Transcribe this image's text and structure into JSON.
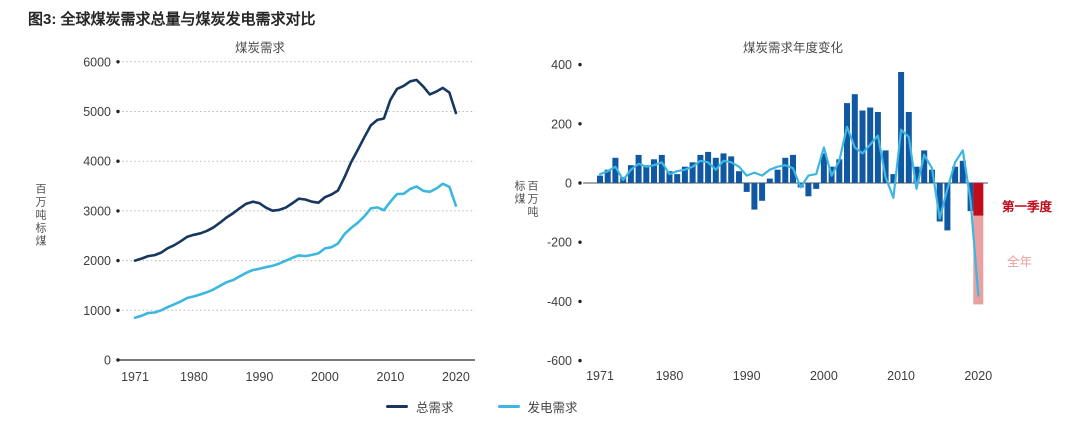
{
  "header": {
    "title": "图3: 全球煤炭需求总量与煤炭发电需求对比"
  },
  "legend": {
    "items": [
      {
        "label": "总需求",
        "color": "#17375e"
      },
      {
        "label": "发电需求",
        "color": "#3db7e2"
      }
    ]
  },
  "chart_data": [
    {
      "type": "line",
      "title": "煤炭需求",
      "ylabel": "百万吨标煤",
      "xlabel": "",
      "ylim": [
        0,
        6000
      ],
      "yticks": [
        0,
        1000,
        2000,
        3000,
        4000,
        5000,
        6000
      ],
      "xticks": [
        1971,
        1980,
        1990,
        2000,
        2010,
        2020
      ],
      "grid": "dotted-horizontal",
      "legend_position": "bottom",
      "years": [
        1971,
        1972,
        1973,
        1974,
        1975,
        1976,
        1977,
        1978,
        1979,
        1980,
        1981,
        1982,
        1983,
        1984,
        1985,
        1986,
        1987,
        1988,
        1989,
        1990,
        1991,
        1992,
        1993,
        1994,
        1995,
        1996,
        1997,
        1998,
        1999,
        2000,
        2001,
        2002,
        2003,
        2004,
        2005,
        2006,
        2007,
        2008,
        2009,
        2010,
        2011,
        2012,
        2013,
        2014,
        2015,
        2016,
        2017,
        2018,
        2019,
        2020
      ],
      "series": [
        {
          "name": "总需求",
          "color": "#17375e",
          "values": [
            2000,
            2040,
            2090,
            2110,
            2160,
            2250,
            2310,
            2390,
            2480,
            2520,
            2550,
            2600,
            2670,
            2765,
            2870,
            2955,
            3055,
            3145,
            3185,
            3155,
            3065,
            3005,
            3020,
            3065,
            3150,
            3245,
            3230,
            3185,
            3165,
            3275,
            3330,
            3410,
            3680,
            3980,
            4225,
            4480,
            4720,
            4830,
            4860,
            5235,
            5455,
            5515,
            5605,
            5635,
            5505,
            5345,
            5400,
            5475,
            5380,
            4970
          ]
        },
        {
          "name": "发电需求",
          "color": "#3db7e2",
          "values": [
            850,
            890,
            945,
            955,
            1000,
            1065,
            1120,
            1180,
            1250,
            1280,
            1320,
            1365,
            1420,
            1495,
            1565,
            1610,
            1685,
            1755,
            1810,
            1835,
            1870,
            1895,
            1940,
            1995,
            2055,
            2105,
            2090,
            2115,
            2145,
            2245,
            2270,
            2345,
            2535,
            2655,
            2760,
            2890,
            3050,
            3070,
            3015,
            3185,
            3340,
            3345,
            3440,
            3490,
            3405,
            3385,
            3450,
            3545,
            3485,
            3105
          ]
        }
      ]
    },
    {
      "type": "bar",
      "title": "煤炭需求年度变化",
      "ylabel": "百万吨\n标煤",
      "xlabel": "",
      "ylim": [
        -600,
        400
      ],
      "yticks": [
        400,
        200,
        0,
        -200,
        -400,
        -600
      ],
      "xticks": [
        1971,
        1980,
        1990,
        2000,
        2010,
        2020
      ],
      "grid": "off",
      "bars": {
        "name": "总需求年度变化",
        "color": "#1158a2",
        "years": [
          1971,
          1972,
          1973,
          1974,
          1975,
          1976,
          1977,
          1978,
          1979,
          1980,
          1981,
          1982,
          1983,
          1984,
          1985,
          1986,
          1987,
          1988,
          1989,
          1990,
          1991,
          1992,
          1993,
          1994,
          1995,
          1996,
          1997,
          1998,
          1999,
          2000,
          2001,
          2002,
          2003,
          2004,
          2005,
          2006,
          2007,
          2008,
          2009,
          2010,
          2011,
          2012,
          2013,
          2014,
          2015,
          2016,
          2017,
          2018,
          2019
        ],
        "values": [
          25,
          45,
          85,
          20,
          60,
          95,
          60,
          80,
          95,
          40,
          30,
          55,
          70,
          95,
          105,
          85,
          100,
          90,
          40,
          -30,
          -90,
          -60,
          15,
          45,
          85,
          95,
          -15,
          -45,
          -20,
          100,
          55,
          80,
          270,
          300,
          245,
          255,
          240,
          110,
          30,
          375,
          240,
          55,
          110,
          45,
          -130,
          -160,
          55,
          75,
          -95
        ]
      },
      "line": {
        "name": "发电需求年度变化",
        "color": "#3db7e2",
        "years": [
          1971,
          1972,
          1973,
          1974,
          1975,
          1976,
          1977,
          1978,
          1979,
          1980,
          1981,
          1982,
          1983,
          1984,
          1985,
          1986,
          1987,
          1988,
          1989,
          1990,
          1991,
          1992,
          1993,
          1994,
          1995,
          1996,
          1997,
          1998,
          1999,
          2000,
          2001,
          2002,
          2003,
          2004,
          2005,
          2006,
          2007,
          2008,
          2009,
          2010,
          2011,
          2012,
          2013,
          2014,
          2015,
          2016,
          2017,
          2018,
          2019,
          2020
        ],
        "values": [
          30,
          40,
          55,
          10,
          45,
          65,
          55,
          60,
          70,
          30,
          40,
          45,
          55,
          75,
          70,
          45,
          75,
          70,
          55,
          25,
          35,
          25,
          45,
          55,
          60,
          50,
          -15,
          25,
          30,
          120,
          25,
          75,
          190,
          120,
          100,
          130,
          160,
          20,
          -50,
          180,
          155,
          -20,
          95,
          50,
          -120,
          -20,
          70,
          110,
          -60,
          -380
        ]
      },
      "highlights": [
        {
          "label": "第一季度",
          "color": "#c00d1d",
          "year": 2020,
          "value": -110
        },
        {
          "label": "全年",
          "color": "#e8a0a0",
          "year": 2020,
          "value": -410
        }
      ]
    }
  ]
}
